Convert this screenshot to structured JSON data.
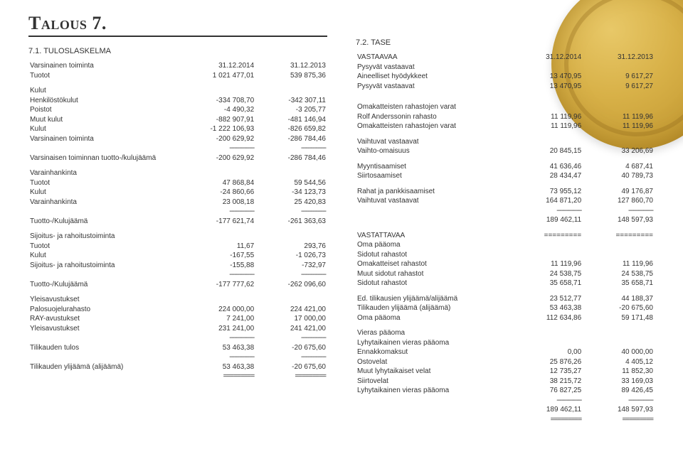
{
  "page": {
    "heading": "Talous 7.",
    "background_color": "#ffffff",
    "text_color": "#333333",
    "coin_colors": [
      "#e8c868",
      "#d8b148",
      "#c9a038",
      "#b58a28"
    ],
    "font_size_pt": 10,
    "heading_font_size_pt": 26
  },
  "left": {
    "section_title": "7.1. TULOSLASKELMA",
    "years": [
      "31.12.2014",
      "31.12.2013"
    ],
    "rows": [
      {
        "label": "Varsinainen toiminta",
        "v1": "",
        "v2": "",
        "type": "head"
      },
      {
        "label": "Tuotot",
        "v1": "1 021 477,01",
        "v2": "539 875,36",
        "indent": 1
      },
      {
        "type": "gap"
      },
      {
        "label": "Kulut",
        "indent": 1
      },
      {
        "label": "Henkilöstökulut",
        "v1": "-334 708,70",
        "v2": "-342 307,11",
        "indent": 2
      },
      {
        "label": "Poistot",
        "v1": "-4 490,32",
        "v2": "-3 205,77",
        "indent": 2
      },
      {
        "label": "Muut kulut",
        "v1": "-882 907,91",
        "v2": "-481 146,94",
        "indent": 2
      },
      {
        "label": "Kulut",
        "v1": "-1 222 106,93",
        "v2": "-826 659,82",
        "indent": 1
      },
      {
        "label": "Varsinainen toiminta",
        "v1": "-200 629,92",
        "v2": "-286 784,46"
      },
      {
        "type": "dash"
      },
      {
        "label": "Varsinaisen toiminnan tuotto-/kulujäämä",
        "v1": "-200 629,92",
        "v2": "-286 784,46"
      },
      {
        "type": "gap"
      },
      {
        "label": "Varainhankinta"
      },
      {
        "label": "Tuotot",
        "v1": "47 868,84",
        "v2": "59 544,56",
        "indent": 1
      },
      {
        "label": "Kulut",
        "v1": "-24 860,66",
        "v2": "-34 123,73",
        "indent": 1
      },
      {
        "label": "Varainhankinta",
        "v1": "23 008,18",
        "v2": "25 420,83"
      },
      {
        "type": "dash"
      },
      {
        "label": "Tuotto-/Kulujäämä",
        "v1": "-177 621,74",
        "v2": "-261 363,63"
      },
      {
        "type": "gap"
      },
      {
        "label": "Sijoitus- ja rahoitustoiminta"
      },
      {
        "label": "Tuotot",
        "v1": "11,67",
        "v2": "293,76",
        "indent": 1
      },
      {
        "label": "Kulut",
        "v1": "-167,55",
        "v2": "-1 026,73",
        "indent": 1
      },
      {
        "label": "Sijoitus- ja rahoitustoiminta",
        "v1": "-155,88",
        "v2": "-732,97"
      },
      {
        "type": "dash"
      },
      {
        "label": "Tuotto-/Kulujäämä",
        "v1": "-177 777,62",
        "v2": "-262 096,60"
      },
      {
        "type": "gap"
      },
      {
        "label": "Yleisavustukset"
      },
      {
        "label": "Palosuojelurahasto",
        "v1": "224 000,00",
        "v2": "224 421,00",
        "indent": 1
      },
      {
        "label": "RAY-avustukset",
        "v1": "7 241,00",
        "v2": "17 000,00",
        "indent": 1
      },
      {
        "label": "Yleisavustukset",
        "v1": "231 241,00",
        "v2": "241 421,00"
      },
      {
        "type": "dash"
      },
      {
        "label": "Tilikauden tulos",
        "v1": "53 463,38",
        "v2": "-20 675,60"
      },
      {
        "type": "dash"
      },
      {
        "label": "Tilikauden ylijäämä (alijäämä)",
        "v1": "53 463,38",
        "v2": "-20 675,60"
      },
      {
        "type": "dbl"
      }
    ]
  },
  "right": {
    "section_title": "7.2. TASE",
    "years": [
      "31.12.2014",
      "31.12.2013"
    ],
    "rows": [
      {
        "label": "VASTAAVAA",
        "v1": "",
        "v2": "",
        "type": "head"
      },
      {
        "label": "Pysyvät vastaavat"
      },
      {
        "label": "Aineelliset hyödykkeet",
        "v1": "13 470,95",
        "v2": "9 617,27",
        "indent": 1
      },
      {
        "label": "Pysyvät vastaavat",
        "v1": "13 470,95",
        "v2": "9 617,27"
      },
      {
        "type": "gap"
      },
      {
        "type": "gap"
      },
      {
        "label": "Omakatteisten rahastojen varat"
      },
      {
        "label": "Rolf Anderssonin rahasto",
        "v1": "11 119,96",
        "v2": "11 119,96",
        "indent": 1
      },
      {
        "label": "Omakatteisten rahastojen varat",
        "v1": "11 119,96",
        "v2": "11 119,96"
      },
      {
        "type": "gap"
      },
      {
        "label": "Vaihtuvat vastaavat"
      },
      {
        "label": "Vaihto-omaisuus",
        "v1": "20 845,15",
        "v2": "33 206,69",
        "indent": 1
      },
      {
        "type": "gap"
      },
      {
        "label": "Myyntisaamiset",
        "v1": "41 636,46",
        "v2": "4 687,41",
        "indent": 1
      },
      {
        "label": "Siirtosaamiset",
        "v1": "28 434,47",
        "v2": "40 789,73",
        "indent": 1
      },
      {
        "type": "gap"
      },
      {
        "label": "Rahat ja pankkisaamiset",
        "v1": "73 955,12",
        "v2": "49 176,87",
        "indent": 1
      },
      {
        "label": "Vaihtuvat vastaavat",
        "v1": "164 871,20",
        "v2": "127 860,70"
      },
      {
        "type": "dash"
      },
      {
        "label": "",
        "v1": "189 462,11",
        "v2": "148 597,93"
      },
      {
        "type": "gap"
      },
      {
        "label": "VASTATTAVAA",
        "v1": "=========",
        "v2": "========="
      },
      {
        "label": "Oma pääoma"
      },
      {
        "label": "Sidotut rahastot",
        "indent": 1
      },
      {
        "label": "Omakatteiset rahastot",
        "v1": "11 119,96",
        "v2": "11 119,96",
        "indent": 2
      },
      {
        "label": "Muut sidotut rahastot",
        "v1": "24 538,75",
        "v2": "24 538,75",
        "indent": 2
      },
      {
        "label": "Sidotut rahastot",
        "v1": "35 658,71",
        "v2": "35 658,71",
        "indent": 1
      },
      {
        "type": "gap"
      },
      {
        "label": "Ed. tilikausien ylijäämä/alijäämä",
        "v1": "23 512,77",
        "v2": "44 188,37",
        "indent": 1
      },
      {
        "label": "Tilikauden ylijäämä (alijäämä)",
        "v1": "53 463,38",
        "v2": "-20 675,60",
        "indent": 1
      },
      {
        "label": "Oma pääoma",
        "v1": "112 634,86",
        "v2": "59 171,48"
      },
      {
        "type": "gap"
      },
      {
        "label": "Vieras pääoma"
      },
      {
        "label": "Lyhytaikainen vieras pääoma"
      },
      {
        "label": "Ennakkomaksut",
        "v1": "0,00",
        "v2": "40 000,00",
        "indent": 1
      },
      {
        "label": "Ostovelat",
        "v1": "25 876,26",
        "v2": "4 405,12",
        "indent": 1
      },
      {
        "label": "Muut lyhytaikaiset velat",
        "v1": "12 735,27",
        "v2": "11 852,30",
        "indent": 1
      },
      {
        "label": "Siirtovelat",
        "v1": "38 215,72",
        "v2": "33 169,03",
        "indent": 1
      },
      {
        "label": "Lyhytaikainen vieras pääoma",
        "v1": "76 827,25",
        "v2": "89 426,45"
      },
      {
        "type": "dash"
      },
      {
        "label": "",
        "v1": "189 462,11",
        "v2": "148 597,93"
      },
      {
        "type": "dbl"
      }
    ]
  }
}
